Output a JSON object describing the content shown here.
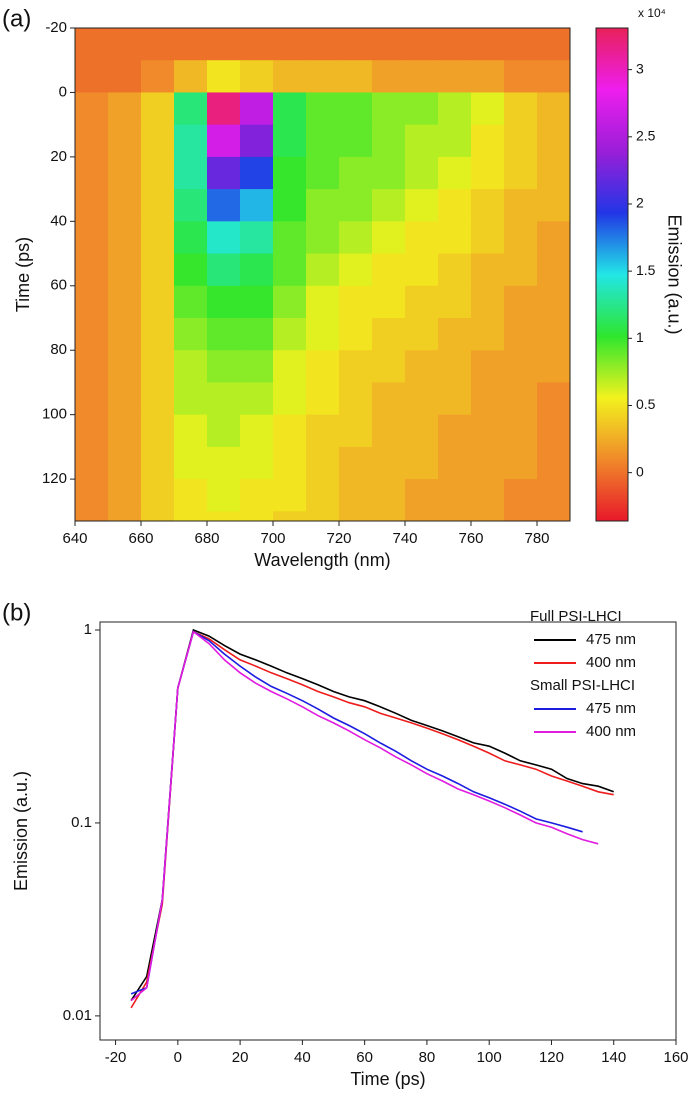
{
  "chart_data": [
    {
      "type": "heatmap",
      "panel_label": "(a)",
      "x_label": "Wavelength (nm)",
      "y_label": "Time (ps)",
      "x": [
        645,
        655,
        665,
        675,
        685,
        695,
        705,
        715,
        725,
        735,
        745,
        755,
        765,
        775,
        785
      ],
      "y": [
        -15,
        -5,
        5,
        15,
        25,
        35,
        45,
        55,
        65,
        75,
        85,
        95,
        105,
        115,
        125,
        135
      ],
      "values": [
        [
          0,
          0,
          0,
          0,
          0,
          0,
          0,
          0,
          0,
          0,
          0,
          0,
          0,
          0,
          0
        ],
        [
          0,
          0,
          0.1,
          0.3,
          0.5,
          0.4,
          0.3,
          0.3,
          0.3,
          0.2,
          0.2,
          0.2,
          0.2,
          0.1,
          0.1
        ],
        [
          0.1,
          0.2,
          0.4,
          1.2,
          3.2,
          2.6,
          1.1,
          0.9,
          0.9,
          0.8,
          0.8,
          0.7,
          0.6,
          0.4,
          0.3
        ],
        [
          0.1,
          0.2,
          0.4,
          1.3,
          2.7,
          2.3,
          1.1,
          0.9,
          0.9,
          0.8,
          0.7,
          0.7,
          0.5,
          0.4,
          0.3
        ],
        [
          0.1,
          0.2,
          0.4,
          1.3,
          2.2,
          1.9,
          1.0,
          0.9,
          0.8,
          0.8,
          0.7,
          0.6,
          0.5,
          0.4,
          0.3
        ],
        [
          0.1,
          0.2,
          0.4,
          1.2,
          1.8,
          1.6,
          1.0,
          0.8,
          0.8,
          0.7,
          0.6,
          0.5,
          0.4,
          0.3,
          0.3
        ],
        [
          0.1,
          0.2,
          0.4,
          1.1,
          1.4,
          1.3,
          0.9,
          0.8,
          0.7,
          0.6,
          0.5,
          0.5,
          0.4,
          0.3,
          0.2
        ],
        [
          0.1,
          0.2,
          0.4,
          1.0,
          1.2,
          1.1,
          0.9,
          0.7,
          0.6,
          0.5,
          0.5,
          0.4,
          0.3,
          0.3,
          0.2
        ],
        [
          0.1,
          0.2,
          0.4,
          0.9,
          1.0,
          1.0,
          0.8,
          0.6,
          0.5,
          0.5,
          0.4,
          0.4,
          0.3,
          0.2,
          0.2
        ],
        [
          0.1,
          0.2,
          0.4,
          0.8,
          0.9,
          0.9,
          0.7,
          0.6,
          0.5,
          0.4,
          0.4,
          0.3,
          0.3,
          0.2,
          0.2
        ],
        [
          0.1,
          0.2,
          0.4,
          0.7,
          0.8,
          0.8,
          0.6,
          0.5,
          0.4,
          0.4,
          0.3,
          0.3,
          0.2,
          0.2,
          0.2
        ],
        [
          0.1,
          0.2,
          0.4,
          0.7,
          0.7,
          0.7,
          0.6,
          0.5,
          0.4,
          0.3,
          0.3,
          0.3,
          0.2,
          0.2,
          0.1
        ],
        [
          0.1,
          0.2,
          0.4,
          0.6,
          0.7,
          0.6,
          0.5,
          0.4,
          0.4,
          0.3,
          0.3,
          0.2,
          0.2,
          0.2,
          0.1
        ],
        [
          0.1,
          0.2,
          0.4,
          0.6,
          0.6,
          0.6,
          0.5,
          0.4,
          0.3,
          0.3,
          0.3,
          0.2,
          0.2,
          0.2,
          0.1
        ],
        [
          0.1,
          0.2,
          0.4,
          0.5,
          0.6,
          0.5,
          0.5,
          0.4,
          0.3,
          0.3,
          0.2,
          0.2,
          0.2,
          0.1,
          0.1
        ],
        [
          0.1,
          0.2,
          0.4,
          0.5,
          0.5,
          0.5,
          0.4,
          0.4,
          0.3,
          0.3,
          0.2,
          0.2,
          0.2,
          0.1,
          0.1
        ]
      ],
      "xlim": [
        640,
        790
      ],
      "xticks": [
        640,
        660,
        680,
        700,
        720,
        740,
        760,
        780
      ],
      "ylim": [
        -20,
        133
      ],
      "yticks": [
        -20,
        0,
        20,
        40,
        60,
        80,
        100,
        120
      ],
      "colormap": [
        "#e8182a",
        "#f08a2a",
        "#f2f21e",
        "#2ee62e",
        "#22e6e6",
        "#2236e6",
        "#9a1ed8",
        "#ee1eee",
        "#e8205a"
      ],
      "clim": [
        -0.36,
        3.31
      ],
      "cticks": [
        0,
        0.5,
        1,
        1.5,
        2,
        2.5,
        3
      ],
      "colorbar_label": "Emission (a.u.)",
      "colorbar_multiplier": "x 10⁴"
    },
    {
      "type": "line",
      "panel_label": "(b)",
      "x_label": "Time (ps)",
      "y_label": "Emission (a.u.)",
      "x": [
        -20,
        -15,
        -10,
        -5,
        0,
        5,
        10,
        15,
        20,
        25,
        30,
        35,
        40,
        45,
        50,
        55,
        60,
        65,
        70,
        75,
        80,
        85,
        90,
        95,
        100,
        105,
        110,
        115,
        120,
        125,
        130,
        135,
        140
      ],
      "groups": [
        {
          "name": "Full PSI-LHCI",
          "series": [
            {
              "name": "475 nm",
              "color": "#000000",
              "values": [
                null,
                0.012,
                0.016,
                0.04,
                0.5,
                1.0,
                0.93,
                0.83,
                0.75,
                0.7,
                0.65,
                0.6,
                0.56,
                0.52,
                0.48,
                0.45,
                0.43,
                0.4,
                0.37,
                0.34,
                0.32,
                0.3,
                0.28,
                0.26,
                0.25,
                0.23,
                0.21,
                0.2,
                0.19,
                0.17,
                0.16,
                0.155,
                0.145
              ]
            },
            {
              "name": "400 nm",
              "color": "#ee1c1c",
              "values": [
                null,
                0.011,
                0.015,
                0.038,
                0.5,
                0.98,
                0.9,
                0.79,
                0.7,
                0.65,
                0.6,
                0.56,
                0.52,
                0.48,
                0.45,
                0.42,
                0.4,
                0.37,
                0.35,
                0.33,
                0.31,
                0.29,
                0.27,
                0.25,
                0.23,
                0.21,
                0.2,
                0.19,
                0.175,
                0.165,
                0.155,
                0.145,
                0.14
              ]
            }
          ]
        },
        {
          "name": "Small PSI-LHCI",
          "series": [
            {
              "name": "475 nm",
              "color": "#1c1ce0",
              "values": [
                null,
                0.013,
                0.014,
                0.04,
                0.5,
                0.98,
                0.88,
                0.75,
                0.65,
                0.57,
                0.51,
                0.47,
                0.43,
                0.39,
                0.35,
                0.32,
                0.29,
                0.26,
                0.235,
                0.21,
                0.19,
                0.175,
                0.16,
                0.145,
                0.135,
                0.125,
                0.115,
                0.105,
                0.1,
                0.095,
                0.09,
                null,
                null
              ]
            },
            {
              "name": "400 nm",
              "color": "#e01ce0",
              "values": [
                null,
                0.012,
                0.014,
                0.04,
                0.5,
                0.98,
                0.85,
                0.7,
                0.6,
                0.53,
                0.48,
                0.44,
                0.4,
                0.36,
                0.33,
                0.3,
                0.27,
                0.245,
                0.22,
                0.2,
                0.18,
                0.165,
                0.15,
                0.14,
                0.13,
                0.12,
                0.11,
                0.1,
                0.095,
                0.088,
                0.082,
                0.078,
                null
              ]
            }
          ]
        }
      ],
      "xlim": [
        -25,
        160
      ],
      "xticks": [
        -20,
        0,
        20,
        40,
        60,
        80,
        100,
        120,
        140,
        160
      ],
      "ylim": [
        0.0075,
        1.1
      ],
      "yticks": [
        0.01,
        0.1,
        1
      ],
      "log_y": true
    }
  ]
}
